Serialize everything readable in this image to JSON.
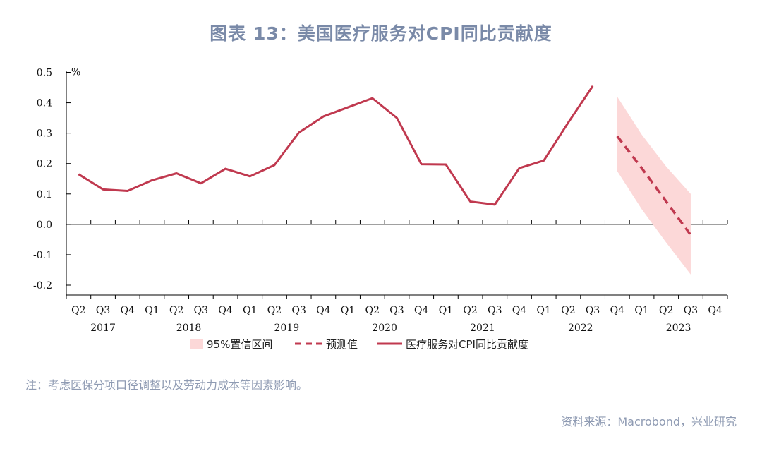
{
  "page_title": "图表 13：美国医疗服务对CPI同比贡献度",
  "note": "注：考虑医保分项口径调整以及劳动力成本等因素影响。",
  "source": "资料来源：Macrobond，兴业研究",
  "chart_data": {
    "type": "line",
    "unit_label": "%",
    "ylim": [
      -0.2,
      0.5
    ],
    "yticks": [
      "0.5",
      "0.4",
      "0.3",
      "0.2",
      "0.1",
      "0.0",
      "-0.1",
      "-0.2"
    ],
    "ytick_values": [
      0.5,
      0.4,
      0.3,
      0.2,
      0.1,
      0.0,
      -0.1,
      -0.2
    ],
    "quarters": [
      "Q2",
      "Q3",
      "Q4",
      "Q1",
      "Q2",
      "Q3",
      "Q4",
      "Q1",
      "Q2",
      "Q3",
      "Q4",
      "Q1",
      "Q2",
      "Q3",
      "Q4",
      "Q1",
      "Q2",
      "Q3",
      "Q4",
      "Q1",
      "Q2",
      "Q3",
      "Q4",
      "Q1",
      "Q2",
      "Q3",
      "Q4"
    ],
    "years": [
      {
        "label": "2017",
        "center_index": 1
      },
      {
        "label": "2018",
        "center_index": 4.5
      },
      {
        "label": "2019",
        "center_index": 8.5
      },
      {
        "label": "2020",
        "center_index": 12.5
      },
      {
        "label": "2021",
        "center_index": 16.5
      },
      {
        "label": "2022",
        "center_index": 20.5
      },
      {
        "label": "2023",
        "center_index": 24.5
      }
    ],
    "colors": {
      "actual": "#c0394f",
      "forecast": "#c0394f",
      "band": "#fcd8d8"
    },
    "series": [
      {
        "name": "医疗服务对CPI同比贡献度",
        "style": "solid",
        "start_index": 0,
        "values": [
          0.165,
          0.115,
          0.11,
          0.145,
          0.168,
          0.135,
          0.183,
          0.158,
          0.195,
          0.302,
          0.355,
          0.385,
          0.415,
          0.35,
          0.198,
          0.197,
          0.075,
          0.065,
          0.185,
          0.21,
          0.335,
          0.455
        ]
      },
      {
        "name": "预测值",
        "style": "dashed",
        "start_index": 22,
        "values": [
          0.29,
          0.185,
          0.075,
          -0.035
        ]
      },
      {
        "name": "95%置信区间",
        "style": "band",
        "start_index": 22,
        "upper": [
          0.42,
          0.295,
          0.19,
          0.1
        ],
        "lower": [
          0.175,
          0.05,
          -0.06,
          -0.165
        ]
      }
    ],
    "legend": [
      "95%置信区间",
      "预测值",
      "医疗服务对CPI同比贡献度"
    ],
    "legend_position": "bottom"
  }
}
